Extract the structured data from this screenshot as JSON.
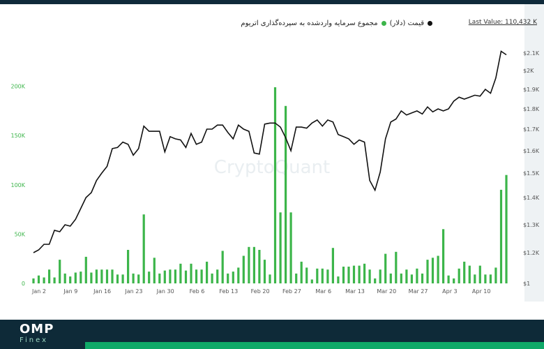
{
  "legend": {
    "series_bars_label": "مجموع سرمایه واردشده به سپرده‌گذاری اتریوم",
    "series_line_label": "قیمت (دلار)"
  },
  "last_value": "Last Value: 110,432 K",
  "watermark": "CryptoQuant",
  "brand": {
    "name": "OMP",
    "sub": "Finex"
  },
  "colors": {
    "bars": "#3cb54a",
    "line": "#111111",
    "axis_left": "#3cb54a",
    "axis_right": "#555555",
    "footer": "#0e2a38",
    "accent": "#0fa968"
  },
  "chart_data": {
    "type": "bar",
    "x_tick_labels": [
      "Jan 2",
      "Jan 9",
      "Jan 16",
      "Jan 23",
      "Jan 30",
      "Feb 6",
      "Feb 13",
      "Feb 20",
      "Feb 27",
      "Mar 6",
      "Mar 13",
      "Mar 20",
      "Mar 27",
      "Apr 3",
      "Apr 10"
    ],
    "y_left": {
      "ticks": [
        "0",
        "50K",
        "100K",
        "150K",
        "200K"
      ],
      "range": [
        0,
        230000
      ]
    },
    "y_right": {
      "ticks": [
        "$1",
        "$1.2K",
        "$1.3K",
        "$1.4K",
        "$1.5K",
        "$1.6K",
        "$1.7K",
        "$1.8K",
        "$1.9K",
        "$2K",
        "$2.1K"
      ]
    },
    "series": [
      {
        "name": "مجموع سرمایه واردشده به سپرده‌گذاری اتریوم",
        "type": "bar",
        "axis": "left",
        "values": [
          5000,
          8000,
          6000,
          14000,
          6000,
          24000,
          10000,
          7000,
          11000,
          12000,
          27000,
          11000,
          14000,
          14000,
          14000,
          14000,
          9000,
          9000,
          34000,
          10000,
          9000,
          70000,
          12000,
          26000,
          10000,
          13000,
          14000,
          14000,
          20000,
          13000,
          20000,
          14000,
          14000,
          22000,
          10000,
          14000,
          33000,
          10000,
          12000,
          16000,
          28000,
          37000,
          37000,
          34000,
          24000,
          9000,
          199000,
          72000,
          180000,
          72000,
          10000,
          22000,
          16000,
          4000,
          15000,
          15000,
          14000,
          36000,
          7000,
          17000,
          17000,
          18000,
          18000,
          20000,
          14000,
          5000,
          14000,
          30000,
          10000,
          32000,
          10000,
          14000,
          9000,
          15000,
          10000,
          24000,
          26000,
          28000,
          55000,
          8000,
          5000,
          15000,
          22000,
          18000,
          9000,
          18000,
          9000,
          9000,
          16000,
          95000,
          110000
        ]
      },
      {
        "name": "قیمت (دلار)",
        "type": "line",
        "axis": "right",
        "values": [
          1200,
          1210,
          1230,
          1230,
          1280,
          1275,
          1300,
          1295,
          1320,
          1360,
          1400,
          1420,
          1470,
          1500,
          1530,
          1610,
          1615,
          1640,
          1630,
          1580,
          1610,
          1715,
          1690,
          1690,
          1690,
          1595,
          1665,
          1655,
          1650,
          1615,
          1680,
          1630,
          1640,
          1700,
          1700,
          1720,
          1720,
          1685,
          1655,
          1720,
          1700,
          1690,
          1590,
          1585,
          1725,
          1730,
          1730,
          1710,
          1660,
          1600,
          1710,
          1710,
          1705,
          1730,
          1745,
          1715,
          1745,
          1735,
          1675,
          1665,
          1655,
          1630,
          1650,
          1640,
          1470,
          1430,
          1505,
          1655,
          1735,
          1750,
          1790,
          1770,
          1780,
          1790,
          1775,
          1810,
          1785,
          1800,
          1790,
          1800,
          1840,
          1860,
          1850,
          1860,
          1870,
          1865,
          1900,
          1880,
          1960,
          2110,
          2090
        ]
      }
    ]
  }
}
